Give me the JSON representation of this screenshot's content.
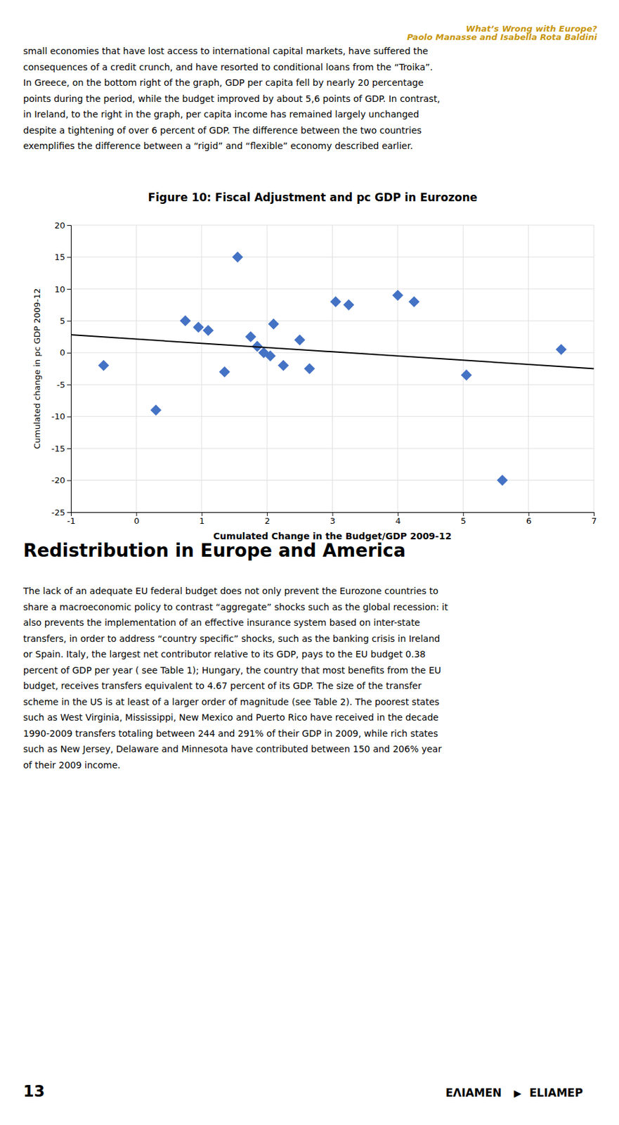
{
  "chart_data": {
    "type": "scatter",
    "title": "Figure 10: Fiscal Adjustment and pc GDP in Eurozone",
    "x_label": "Cumulated Change in the Budget/GDP 2009-12",
    "y_label": "Cumulated change in pc GDP  2009-12",
    "series": [
      {
        "type": "scatter",
        "color": "#4472C4",
        "marker": "diamond",
        "x": [
          -0.5,
          0.3,
          0.75,
          0.95,
          1.1,
          1.35,
          1.55,
          1.75,
          1.85,
          1.95,
          2.05,
          2.1,
          2.25,
          2.5,
          2.65,
          3.05,
          3.25,
          4.0,
          4.25,
          5.05,
          5.6,
          6.5
        ],
        "values": [
          -2.0,
          -9.0,
          5.0,
          4.0,
          3.5,
          -3.0,
          15.0,
          2.5,
          1.0,
          0.0,
          -0.5,
          4.5,
          -2.0,
          2.0,
          -2.5,
          8.0,
          7.5,
          9.0,
          8.0,
          -3.5,
          -20.0,
          0.5
        ]
      },
      {
        "type": "line",
        "color": "#000000",
        "line_style": "solid",
        "x": [
          -1.0,
          7.0
        ],
        "values": [
          2.8,
          -2.5
        ]
      }
    ],
    "xlim": [
      -1,
      7
    ],
    "ylim": [
      -25,
      20
    ],
    "xticks": [
      -1,
      0,
      1,
      2,
      3,
      4,
      5,
      6,
      7
    ],
    "yticks": [
      -25,
      -20,
      -15,
      -10,
      -5,
      0,
      5,
      10,
      15,
      20
    ],
    "grid": true
  },
  "header": [
    "What’s Wrong with Europe?",
    "Paolo Manasse and Isabella Rota Baldini"
  ],
  "header_color": "#C8960C",
  "top_text": "small economies that have lost access to international capital markets, have suffered the\nconsequences of a credit crunch, and have resorted to conditional loans from the “Troika”.\nIn Greece, on the bottom right of the graph, GDP per capita fell by nearly 20 percentage\npoints during the period, while the budget improved by about 5,6 points of GDP. In contrast,\nin Ireland, to the right in the graph, per capita income has remained largely unchanged\ndespite a tightening of over 6 percent of GDP. The difference between the two countries\nexemplifies the difference between a “rigid” and “flexible” economy described earlier.",
  "section_title": "Redistribution in Europe and America",
  "bottom_text": "The lack of an adequate EU federal budget does not only prevent the Eurozone countries to\nshare a macroeconomic policy to contrast “aggregate” shocks such as the global recession: it\nalso prevents the implementation of an effective insurance system based on inter-state\ntransfers, in order to address “country specific” shocks, such as the banking crisis in Ireland\nor Spain. Italy, the largest net contributor relative to its GDP, pays to the EU budget 0.38\npercent of GDP per year ( see Table 1); Hungary, the country that most benefits from the EU\nbudget, receives transfers equivalent to 4.67 percent of its GDP. The size of the transfer\nscheme in the US is at least of a larger order of magnitude (see Table 2). The poorest states\nsuch as West Virginia, Mississippi, New Mexico and Puerto Rico have received in the decade\n1990-2009 transfers totaling between 244 and 291% of their GDP in 2009, while rich states\nsuch as New Jersey, Delaware and Minnesota have contributed between 150 and 206% year\nof their 2009 income.",
  "page_number": "13",
  "logo": [
    "EΛΙΑΜΕΝ",
    "▶",
    "ELIAMEP"
  ]
}
